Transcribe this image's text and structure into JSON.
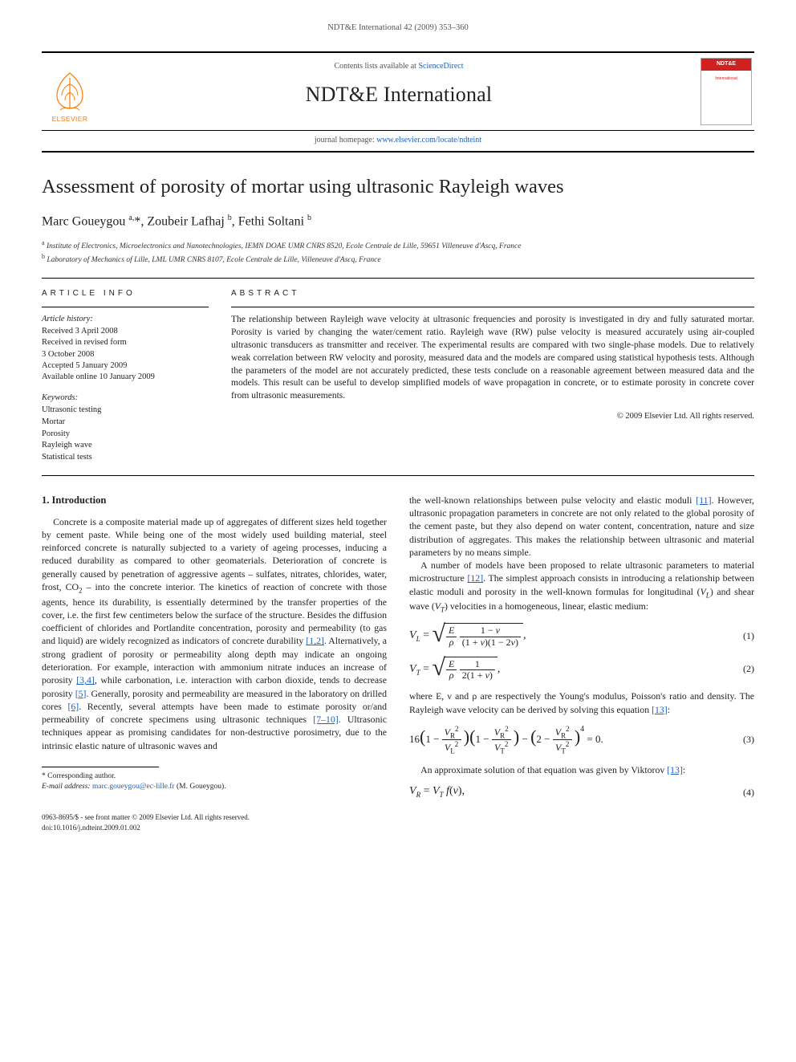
{
  "running_header": "NDT&E International 42 (2009) 353–360",
  "masthead": {
    "contents_prefix": "Contents lists available at ",
    "contents_link_text": "ScienceDirect",
    "journal_title": "NDT&E International",
    "homepage_prefix": "journal homepage: ",
    "homepage_link_text": "www.elsevier.com/locate/ndteint",
    "publisher_name": "ELSEVIER",
    "cover_title": "NDT&E",
    "cover_sub": "International"
  },
  "article": {
    "title": "Assessment of porosity of mortar using ultrasonic Rayleigh waves",
    "authors_html": "Marc Goueygou <sup>a,</sup>*, Zoubeir Lafhaj <sup>b</sup>, Fethi Soltani <sup>b</sup>",
    "affiliations": [
      {
        "mark": "a",
        "text": "Institute of Electronics, Microelectronics and Nanotechnologies, IEMN DOAE UMR CNRS 8520, Ecole Centrale de Lille, 59651 Villeneuve d'Ascq, France"
      },
      {
        "mark": "b",
        "text": "Laboratory of Mechanics of Lille, LML UMR CNRS 8107, Ecole Centrale de Lille, Villeneuve d'Ascq, France"
      }
    ]
  },
  "info": {
    "label": "ARTICLE INFO",
    "history_label": "Article history:",
    "history": [
      "Received 3 April 2008",
      "Received in revised form",
      "3 October 2008",
      "Accepted 5 January 2009",
      "Available online 10 January 2009"
    ],
    "keywords_label": "Keywords:",
    "keywords": [
      "Ultrasonic testing",
      "Mortar",
      "Porosity",
      "Rayleigh wave",
      "Statistical tests"
    ]
  },
  "abstract": {
    "label": "ABSTRACT",
    "text": "The relationship between Rayleigh wave velocity at ultrasonic frequencies and porosity is investigated in dry and fully saturated mortar. Porosity is varied by changing the water/cement ratio. Rayleigh wave (RW) pulse velocity is measured accurately using air-coupled ultrasonic transducers as transmitter and receiver. The experimental results are compared with two single-phase models. Due to relatively weak correlation between RW velocity and porosity, measured data and the models are compared using statistical hypothesis tests. Although the parameters of the model are not accurately predicted, these tests conclude on a reasonable agreement between measured data and the models. This result can be useful to develop simplified models of wave propagation in concrete, or to estimate porosity in concrete cover from ultrasonic measurements.",
    "copyright": "© 2009 Elsevier Ltd. All rights reserved."
  },
  "body": {
    "section_heading": "1. Introduction",
    "left_col": "Concrete is a composite material made up of aggregates of different sizes held together by cement paste. While being one of the most widely used building material, steel reinforced concrete is naturally subjected to a variety of ageing processes, inducing a reduced durability as compared to other geomaterials. Deterioration of concrete is generally caused by penetration of aggressive agents – sulfates, nitrates, chlorides, water, frost, CO₂ – into the concrete interior. The kinetics of reaction of concrete with those agents, hence its durability, is essentially determined by the transfer properties of the cover, i.e. the first few centimeters below the surface of the structure. Besides the diffusion coefficient of chlorides and Portlandite concentration, porosity and permeability (to gas and liquid) are widely recognized as indicators of concrete durability [1,2]. Alternatively, a strong gradient of porosity or permeability along depth may indicate an ongoing deterioration. For example, interaction with ammonium nitrate induces an increase of porosity [3,4], while carbonation, i.e. interaction with carbon dioxide, tends to decrease porosity [5]. Generally, porosity and permeability are measured in the laboratory on drilled cores [6]. Recently, several attempts have been made to estimate porosity or/and permeability of concrete specimens using ultrasonic techniques [7–10]. Ultrasonic techniques appear as promising candidates for non-destructive porosimetry, due to the intrinsic elastic nature of ultrasonic waves and",
    "right_para1": "the well-known relationships between pulse velocity and elastic moduli [11]. However, ultrasonic propagation parameters in concrete are not only related to the global porosity of the cement paste, but they also depend on water content, concentration, nature and size distribution of aggregates. This makes the relationship between ultrasonic and material parameters by no means simple.",
    "right_para2": "A number of models have been proposed to relate ultrasonic parameters to material microstructure [12]. The simplest approach consists in introducing a relationship between elastic moduli and porosity in the well-known formulas for longitudinal (V_L) and shear wave (V_T) velocities in a homogeneous, linear, elastic medium:",
    "right_para3": "where E, ν and ρ are respectively the Young's modulus, Poisson's ratio and density. The Rayleigh wave velocity can be derived by solving this equation [13]:",
    "right_para4": "An approximate solution of that equation was given by Viktorov [13]:",
    "eq1_num": "(1)",
    "eq2_num": "(2)",
    "eq3_num": "(3)",
    "eq4_num": "(4)"
  },
  "footer": {
    "corr_label": "* Corresponding author.",
    "email_label": "E-mail address:",
    "email": "marc.goueygou@ec-lille.fr",
    "email_who": "(M. Goueygou).",
    "issn_line": "0963-8695/$ - see front matter © 2009 Elsevier Ltd. All rights reserved.",
    "doi_line": "doi:10.1016/j.ndteint.2009.01.002"
  },
  "refs": {
    "r1_2": "[1,2]",
    "r3_4": "[3,4]",
    "r5": "[5]",
    "r6": "[6]",
    "r7_10": "[7–10]",
    "r11": "[11]",
    "r12": "[12]",
    "r13a": "[13]",
    "r13b": "[13]"
  }
}
